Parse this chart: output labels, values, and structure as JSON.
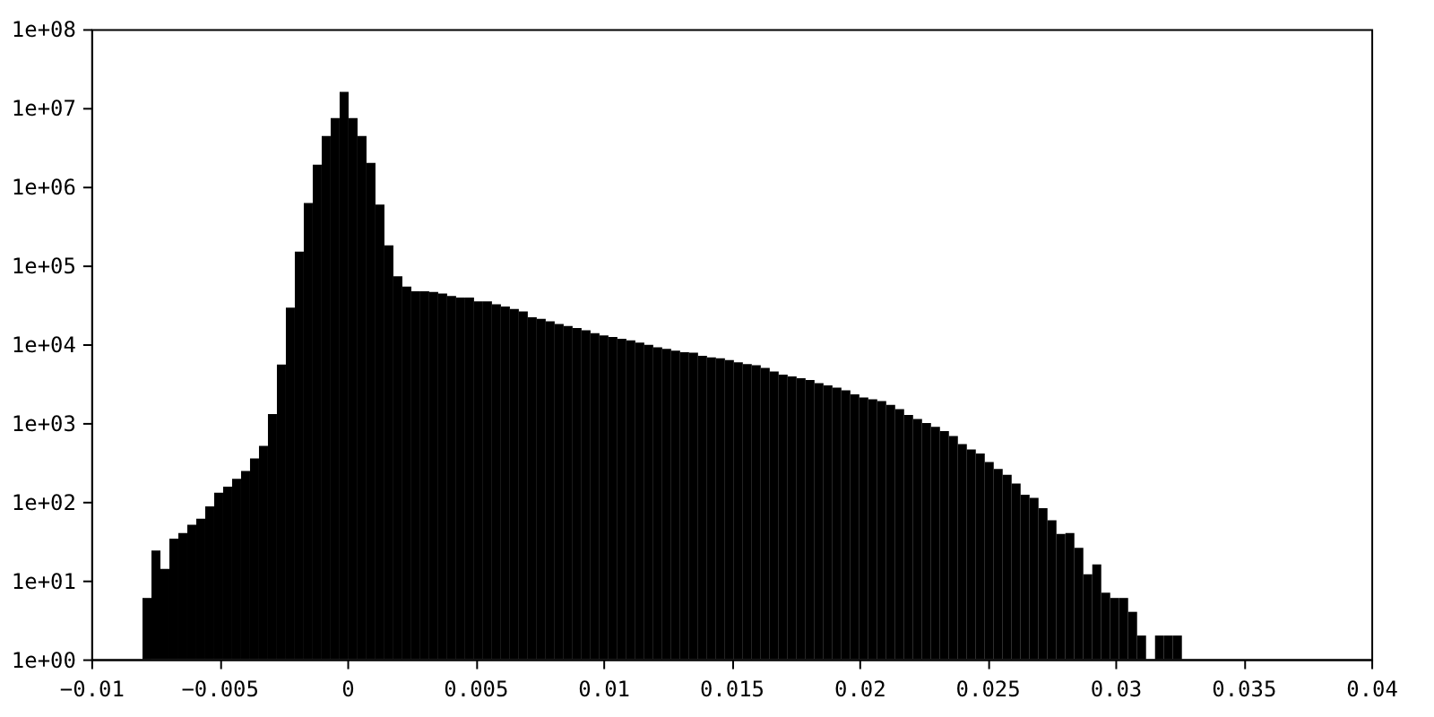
{
  "chart_data": {
    "type": "histogram",
    "log": "y",
    "grid": false,
    "color": "#000000",
    "bins": [
      -0.008,
      -0.00765,
      -0.0073,
      -0.00695,
      -0.0066,
      -0.00625,
      -0.0059,
      -0.00555,
      -0.0052,
      -0.00485,
      -0.0045,
      -0.00415,
      -0.0038,
      -0.00345,
      -0.0031,
      -0.00275,
      -0.0024,
      -0.00205,
      -0.0017,
      -0.00135,
      -0.001,
      -0.00065,
      -0.0003,
      5e-05,
      0.0004,
      0.00075,
      0.0011,
      0.00145,
      0.0018,
      0.00215,
      0.0025,
      0.00285,
      0.0032,
      0.00355,
      0.0039,
      0.00425,
      0.0046,
      0.00495,
      0.0053,
      0.00565,
      0.006,
      0.00635,
      0.0067,
      0.00705,
      0.0074,
      0.00775,
      0.0081,
      0.00845,
      0.0088,
      0.00915,
      0.0095,
      0.00985,
      0.0102,
      0.01055,
      0.0109,
      0.01125,
      0.0116,
      0.01195,
      0.0123,
      0.01265,
      0.013,
      0.01335,
      0.0137,
      0.01405,
      0.0144,
      0.01475,
      0.0151,
      0.01545,
      0.0158,
      0.01615,
      0.0165,
      0.01685,
      0.0172,
      0.01755,
      0.0179,
      0.01825,
      0.0186,
      0.01895,
      0.0193,
      0.01965,
      0.02,
      0.02035,
      0.0207,
      0.02105,
      0.0214,
      0.02175,
      0.0221,
      0.02245,
      0.0228,
      0.02315,
      0.0235,
      0.02385,
      0.0242,
      0.02455,
      0.0249,
      0.02525,
      0.0256,
      0.02595,
      0.0263,
      0.02665,
      0.027,
      0.02735,
      0.0277,
      0.02805,
      0.0284,
      0.02875,
      0.0291,
      0.02945,
      0.0298,
      0.03015,
      0.0305,
      0.03085,
      0.0312,
      0.03155,
      0.0319,
      0.03225,
      0.0326
    ],
    "values": [
      6,
      24,
      14,
      34,
      40,
      51,
      61,
      87,
      130,
      155,
      195,
      245,
      355,
      510,
      1300,
      5500,
      29000,
      150000,
      620000,
      1900000,
      4400000,
      7400000,
      16000000,
      7400000,
      4400000,
      2000000,
      590000,
      180000,
      73000,
      54000,
      47000,
      47000,
      46000,
      44000,
      41000,
      39000,
      39000,
      35000,
      35000,
      32000,
      30000,
      28000,
      26000,
      22000,
      21000,
      19500,
      18000,
      17000,
      16000,
      15000,
      13800,
      12900,
      12300,
      11700,
      11200,
      10500,
      9800,
      9100,
      8700,
      8300,
      7900,
      7800,
      7100,
      6800,
      6600,
      6300,
      5900,
      5600,
      5400,
      5000,
      4500,
      4100,
      3900,
      3700,
      3500,
      3200,
      3000,
      2800,
      2600,
      2300,
      2100,
      2000,
      1900,
      1700,
      1500,
      1260,
      1120,
      1000,
      890,
      790,
      680,
      540,
      460,
      410,
      320,
      260,
      220,
      170,
      123,
      112,
      83,
      58,
      39,
      40,
      26,
      12,
      16,
      7,
      6,
      6,
      4,
      2,
      null,
      2,
      2,
      2
    ],
    "xlim": [
      -0.01,
      0.04
    ],
    "xticks": [
      -0.01,
      -0.005,
      0,
      0.005,
      0.01,
      0.015,
      0.02,
      0.025,
      0.03,
      0.035,
      0.04
    ],
    "ylim": [
      1,
      100000000
    ],
    "yticks": [
      {
        "value": 1,
        "label": "1e+00"
      },
      {
        "value": 10,
        "label": "1e+01"
      },
      {
        "value": 100,
        "label": "1e+02"
      },
      {
        "value": 1000,
        "label": "1e+03"
      },
      {
        "value": 10000,
        "label": "1e+04"
      },
      {
        "value": 100000,
        "label": "1e+05"
      },
      {
        "value": 1000000,
        "label": "1e+06"
      },
      {
        "value": 10000000,
        "label": "1e+07"
      },
      {
        "value": 100000000,
        "label": "1e+08"
      }
    ]
  }
}
